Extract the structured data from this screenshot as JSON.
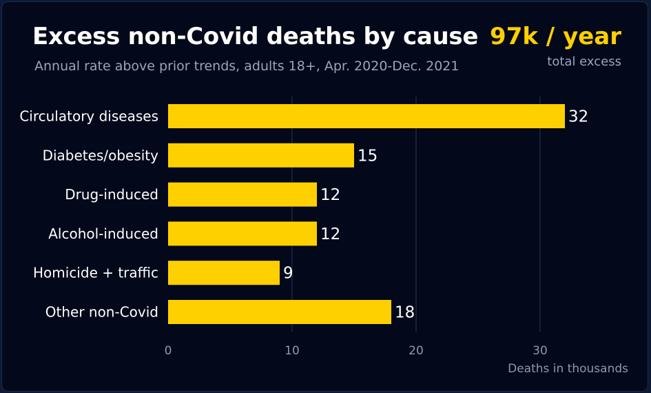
{
  "header": {
    "title": "Excess non-Covid deaths by cause",
    "subtitle": "Annual rate above prior trends, adults 18+, Apr. 2020-Dec. 2021"
  },
  "kpi": {
    "value": "97k / year",
    "label": "total excess"
  },
  "colors": {
    "bar": "#ffd000",
    "kpi": "#ffd000",
    "grid": "#2a3550",
    "background": "#03091a"
  },
  "chart_data": {
    "type": "bar",
    "orientation": "horizontal",
    "categories": [
      "Circulatory diseases",
      "Diabetes/obesity",
      "Drug-induced",
      "Alcohol-induced",
      "Homicide + traffic",
      "Other non-Covid"
    ],
    "values": [
      32,
      15,
      12,
      12,
      9,
      18
    ],
    "xlabel": "Deaths in thousands",
    "ylabel": "",
    "xlim": [
      0,
      39
    ],
    "xticks": [
      "0",
      "10",
      "20",
      "30"
    ],
    "grid": true,
    "data_labels": true
  }
}
